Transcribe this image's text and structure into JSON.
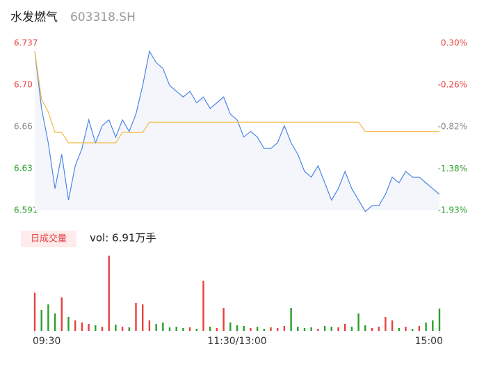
{
  "chart_data": [
    {
      "type": "line",
      "title": "水发燃气",
      "subtitle": "603318.SH",
      "x": [
        0,
        4,
        8,
        12,
        16,
        20,
        24,
        28,
        32,
        36,
        40,
        44,
        48,
        52,
        56,
        60,
        64,
        68,
        72,
        76,
        80,
        84,
        88,
        92,
        96,
        100,
        104,
        108,
        112,
        116,
        120,
        124,
        128,
        132,
        136,
        140,
        144,
        148,
        152,
        156,
        160,
        164,
        168,
        172,
        176,
        180,
        184,
        188,
        192,
        196,
        200,
        204,
        208,
        212,
        216,
        220,
        224,
        228,
        232,
        236,
        240
      ],
      "xlim": [
        0,
        240
      ],
      "series": [
        {
          "color": "#4a86e8",
          "values": [
            6.73,
            6.68,
            6.65,
            6.61,
            6.64,
            6.6,
            6.63,
            6.645,
            6.67,
            6.65,
            6.665,
            6.67,
            6.655,
            6.67,
            6.66,
            6.675,
            6.7,
            6.73,
            6.72,
            6.715,
            6.7,
            6.695,
            6.69,
            6.695,
            6.685,
            6.69,
            6.68,
            6.685,
            6.69,
            6.675,
            6.67,
            6.655,
            6.66,
            6.655,
            6.645,
            6.645,
            6.65,
            6.665,
            6.65,
            6.64,
            6.625,
            6.62,
            6.63,
            6.615,
            6.6,
            6.61,
            6.625,
            6.61,
            6.6,
            6.59,
            6.595,
            6.595,
            6.605,
            6.62,
            6.615,
            6.625,
            6.62,
            6.62,
            6.615,
            6.61,
            6.605
          ]
        },
        {
          "color": "#f5b942",
          "values": [
            6.73,
            6.688,
            6.677,
            6.659,
            6.659,
            6.65,
            6.65,
            6.65,
            6.65,
            6.65,
            6.65,
            6.65,
            6.65,
            6.659,
            6.659,
            6.659,
            6.659,
            6.668,
            6.668,
            6.668,
            6.668,
            6.668,
            6.668,
            6.668,
            6.668,
            6.668,
            6.668,
            6.668,
            6.668,
            6.668,
            6.668,
            6.668,
            6.668,
            6.668,
            6.668,
            6.668,
            6.668,
            6.668,
            6.668,
            6.668,
            6.668,
            6.668,
            6.668,
            6.668,
            6.668,
            6.668,
            6.668,
            6.668,
            6.668,
            6.66,
            6.66,
            6.66,
            6.66,
            6.66,
            6.66,
            6.66,
            6.66,
            6.66,
            6.66,
            6.66,
            6.66
          ]
        }
      ],
      "ylim": [
        6.591,
        6.737
      ],
      "yticks": [
        6.737,
        {
          "value": 6.7005,
          "label": "6.70"
        },
        {
          "value": 6.664,
          "label": "6.66"
        },
        {
          "value": 6.6275,
          "label": "6.63"
        },
        6.591
      ],
      "y2lim": [
        -1.93,
        0.3
      ],
      "y2ticks": [
        {
          "value": 0.3,
          "label": "0.30%"
        },
        {
          "value": -0.2575,
          "label": "-0.26%"
        },
        {
          "value": -0.815,
          "label": "-0.82%"
        },
        {
          "value": -1.375,
          "label": "-1.38%"
        },
        {
          "value": -1.93,
          "label": "-1.93%"
        }
      ],
      "area_fill": "#f4f6fb",
      "up_color": "#e8403f",
      "flat_color": "#888888",
      "down_color": "#2aa02a"
    },
    {
      "type": "bar",
      "label": "日成交量",
      "annotation": "vol: 6.91万手",
      "x": [
        0,
        4,
        8,
        12,
        16,
        20,
        24,
        28,
        32,
        36,
        40,
        44,
        48,
        52,
        56,
        60,
        64,
        68,
        72,
        76,
        80,
        84,
        88,
        92,
        96,
        100,
        104,
        108,
        112,
        116,
        120,
        124,
        128,
        132,
        136,
        140,
        144,
        148,
        152,
        156,
        160,
        164,
        168,
        172,
        176,
        180,
        184,
        188,
        192,
        196,
        200,
        204,
        208,
        212,
        216,
        220,
        224,
        228,
        232,
        236,
        240
      ],
      "xlim": [
        0,
        240
      ],
      "values": [
        550,
        300,
        380,
        250,
        480,
        200,
        150,
        120,
        100,
        80,
        60,
        1080,
        90,
        60,
        50,
        400,
        380,
        150,
        100,
        120,
        50,
        60,
        40,
        50,
        30,
        720,
        60,
        40,
        330,
        120,
        80,
        70,
        40,
        60,
        30,
        50,
        40,
        70,
        330,
        60,
        40,
        50,
        30,
        70,
        60,
        50,
        100,
        60,
        250,
        80,
        40,
        60,
        200,
        150,
        40,
        60,
        30,
        70,
        120,
        150,
        320
      ],
      "ylim": [
        0,
        1100
      ],
      "xticks": [
        {
          "value": 0,
          "label": "09:30"
        },
        {
          "value": 120,
          "label": "11:30/13:00"
        },
        {
          "value": 240,
          "label": "15:00"
        }
      ],
      "up_color": "#e8403f",
      "down_color": "#2aa02a"
    }
  ]
}
